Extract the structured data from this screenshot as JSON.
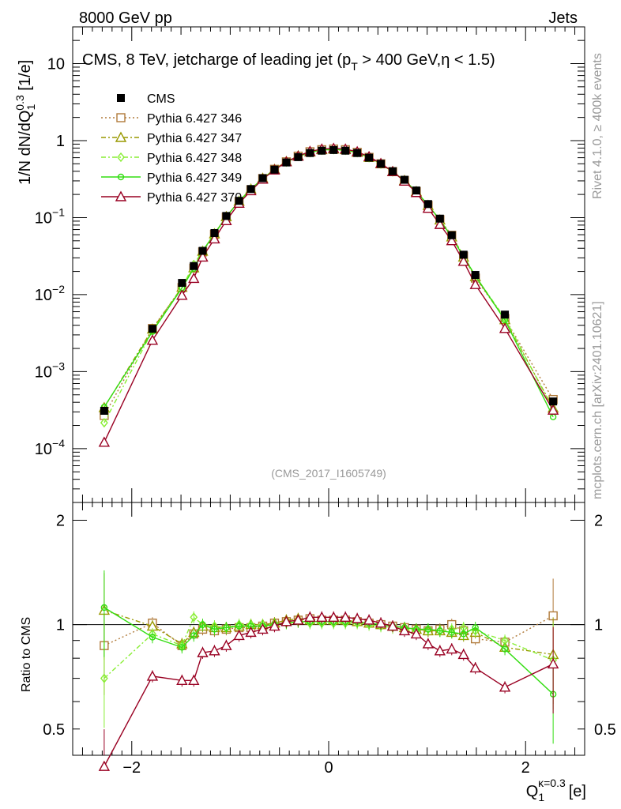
{
  "header": {
    "energy_label": "8000 GeV pp",
    "category_label": "Jets",
    "rivet_label": "Rivet 4.1.0, ≥ 400k events",
    "site_label": "mcplots.cern.ch [arXiv:2401.10621]",
    "analysis_label": "(CMS_2017_I1605749)"
  },
  "chart_data": {
    "type": "scatter",
    "title": "CMS, 8 TeV, jetcharge of leading jet (p_T > 400 GeV, η < 1.5)",
    "xlabel": "Q_1^{κ=0.3} [e]",
    "ylabel": "1/N dN/dQ_1^{0.3} [1/e]",
    "ratio_ylabel": "Ratio to CMS",
    "xlim": [
      -2.6,
      2.6
    ],
    "ylim": [
      2e-05,
      30
    ],
    "ratio_ylim": [
      0.42,
      2.25
    ],
    "yscale": "log",
    "ratio_yscale": "log",
    "grid": false,
    "legend_position": "top-left",
    "x_ticks": [
      {
        "v": -2,
        "label": "−2"
      },
      {
        "v": 0,
        "label": "0"
      },
      {
        "v": 2,
        "label": "2"
      }
    ],
    "y_ticks": [
      {
        "v": 0.0001,
        "m": "10",
        "e": "−4"
      },
      {
        "v": 0.001,
        "m": "10",
        "e": "−3"
      },
      {
        "v": 0.01,
        "m": "10",
        "e": "−2"
      },
      {
        "v": 0.1,
        "m": "10",
        "e": "−1"
      },
      {
        "v": 1,
        "m": "1",
        "e": ""
      },
      {
        "v": 10,
        "m": "10",
        "e": ""
      }
    ],
    "ratio_ticks": [
      {
        "v": 0.5,
        "label": "0.5"
      },
      {
        "v": 1,
        "label": "1"
      },
      {
        "v": 2,
        "label": "2"
      }
    ],
    "x": [
      -2.28,
      -1.79,
      -1.49,
      -1.37,
      -1.28,
      -1.16,
      -1.04,
      -0.91,
      -0.79,
      -0.67,
      -0.55,
      -0.43,
      -0.31,
      -0.19,
      -0.07,
      0.05,
      0.17,
      0.29,
      0.41,
      0.53,
      0.65,
      0.77,
      0.89,
      1.01,
      1.13,
      1.25,
      1.37,
      1.49,
      1.79,
      2.28
    ],
    "series": [
      {
        "name": "CMS",
        "color": "#000000",
        "line": "none",
        "marker": "filled-square",
        "values": [
          0.00031,
          0.0036,
          0.0142,
          0.0235,
          0.037,
          0.063,
          0.105,
          0.165,
          0.235,
          0.325,
          0.42,
          0.52,
          0.61,
          0.69,
          0.74,
          0.755,
          0.74,
          0.69,
          0.6,
          0.5,
          0.4,
          0.31,
          0.225,
          0.15,
          0.097,
          0.059,
          0.033,
          0.018,
          0.0055,
          0.00041
        ]
      },
      {
        "name": "Pythia 6.427 346",
        "color": "#b07a3a",
        "line": "dotted",
        "marker": "open-square",
        "ratio": [
          0.87,
          1.01,
          0.87,
          0.94,
          0.97,
          0.96,
          0.97,
          0.98,
          0.98,
          0.99,
          1.01,
          1.02,
          1.03,
          1.04,
          1.03,
          1.03,
          1.03,
          1.02,
          1.01,
          1.0,
          0.99,
          0.98,
          0.97,
          0.96,
          0.97,
          1.0,
          0.96,
          0.91,
          0.89,
          1.06
        ]
      },
      {
        "name": "Pythia 6.427 347",
        "color": "#999900",
        "line": "dashdot",
        "marker": "open-triangle",
        "ratio": [
          1.1,
          0.99,
          0.88,
          0.95,
          0.99,
          0.98,
          0.98,
          0.99,
          1.0,
          1.0,
          1.01,
          1.03,
          1.04,
          1.03,
          1.03,
          1.03,
          1.03,
          1.02,
          1.01,
          1.0,
          0.99,
          0.98,
          0.97,
          0.96,
          0.96,
          0.95,
          0.93,
          0.95,
          0.86,
          0.82
        ]
      },
      {
        "name": "Pythia 6.427 348",
        "color": "#88ee33",
        "line": "dashdot",
        "marker": "open-diamond",
        "ratio": [
          0.7,
          0.94,
          0.87,
          1.05,
          1.0,
          0.99,
          0.98,
          1.0,
          1.0,
          1.0,
          1.0,
          1.01,
          1.02,
          1.01,
          1.01,
          1.01,
          1.01,
          1.01,
          1.0,
          0.99,
          0.98,
          0.97,
          0.96,
          0.97,
          0.96,
          0.97,
          0.98,
          0.96,
          0.9,
          0.79
        ]
      },
      {
        "name": "Pythia 6.427 349",
        "color": "#33dd11",
        "line": "solid",
        "marker": "open-circle",
        "ratio": [
          1.12,
          0.92,
          0.86,
          0.93,
          1.0,
          0.97,
          0.98,
          0.99,
          0.99,
          0.99,
          1.0,
          1.01,
          1.02,
          1.02,
          1.02,
          1.02,
          1.02,
          1.02,
          1.01,
          1.0,
          0.99,
          0.98,
          0.97,
          0.97,
          0.96,
          0.95,
          0.94,
          0.98,
          0.85,
          0.63
        ]
      },
      {
        "name": "Pythia 6.427 370",
        "color": "#990022",
        "line": "solid",
        "marker": "open-triangle",
        "ratio": [
          0.39,
          0.71,
          0.69,
          0.69,
          0.83,
          0.84,
          0.87,
          0.93,
          0.95,
          0.97,
          0.99,
          1.02,
          1.03,
          1.05,
          1.05,
          1.05,
          1.05,
          1.04,
          1.03,
          1.01,
          0.99,
          0.96,
          0.94,
          0.88,
          0.84,
          0.85,
          0.82,
          0.75,
          0.66,
          0.77
        ]
      }
    ]
  }
}
